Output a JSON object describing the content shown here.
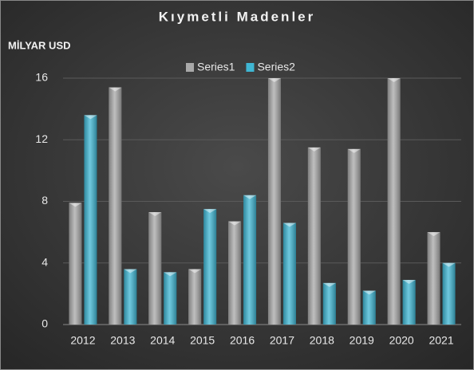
{
  "chart_data": {
    "type": "bar",
    "title": "Kıymetli Madenler",
    "y_label": "MİLYAR USD",
    "categories": [
      "2012",
      "2013",
      "2014",
      "2015",
      "2016",
      "2017",
      "2018",
      "2019",
      "2020",
      "2021"
    ],
    "series": [
      {
        "name": "Series1",
        "color": "#a9a9a9",
        "values": [
          7.9,
          15.4,
          7.3,
          3.6,
          6.7,
          16,
          11.5,
          11.4,
          16,
          6.0
        ]
      },
      {
        "name": "Series2",
        "color": "#3fb6d3",
        "values": [
          13.6,
          3.6,
          3.4,
          7.5,
          8.4,
          6.6,
          2.7,
          2.2,
          2.9,
          4.0
        ]
      }
    ],
    "ylim": [
      0,
      16
    ],
    "yticks": [
      0,
      4,
      8,
      12,
      16
    ],
    "grid": true,
    "legend": "top"
  }
}
